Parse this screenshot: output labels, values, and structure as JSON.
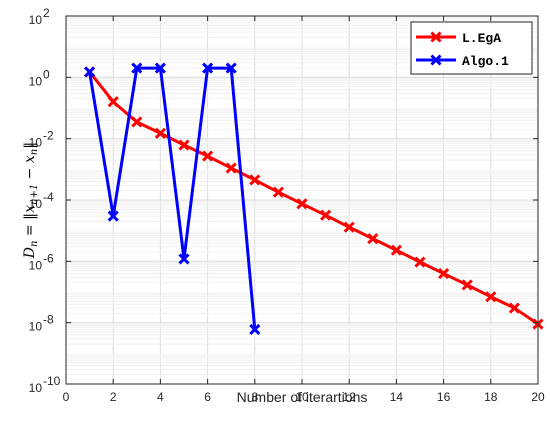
{
  "chart_data": {
    "type": "line",
    "xlabel": "Number of iterartions",
    "ylabel": "D_n = ||x_{n+1} − x_n||",
    "ylabel_parts": {
      "lhs": "D",
      "lhs_sub": "n",
      "eq": " = ‖",
      "x1": "x",
      "x1_sub": "n+1",
      "minus": " − ",
      "x2": "x",
      "x2_sub": "n",
      "close": "‖"
    },
    "xlim": [
      0,
      20
    ],
    "ylim": [
      1e-10,
      100
    ],
    "yscale": "log",
    "x_ticks": [
      0,
      2,
      4,
      6,
      8,
      10,
      12,
      14,
      16,
      18,
      20
    ],
    "y_ticks": [
      {
        "base": "10",
        "exp": "-10",
        "value": 1e-10
      },
      {
        "base": "10",
        "exp": "-8",
        "value": 1e-08
      },
      {
        "base": "10",
        "exp": "-6",
        "value": 1e-06
      },
      {
        "base": "10",
        "exp": "-4",
        "value": 0.0001
      },
      {
        "base": "10",
        "exp": "-2",
        "value": 0.01
      },
      {
        "base": "10",
        "exp": "0",
        "value": 1
      },
      {
        "base": "10",
        "exp": "2",
        "value": 100
      }
    ],
    "grid": true,
    "legend_position": "top-right",
    "series": [
      {
        "name": "L.EgA",
        "color": "#ff0000",
        "marker": "x",
        "x": [
          1,
          2,
          3,
          4,
          5,
          6,
          7,
          8,
          9,
          10,
          11,
          12,
          13,
          14,
          15,
          16,
          17,
          18,
          19,
          20
        ],
        "y": [
          1.5,
          0.16,
          0.035,
          0.015,
          0.0062,
          0.0027,
          0.0011,
          0.00045,
          0.00018,
          7.5e-05,
          3.2e-05,
          1.3e-05,
          5.5e-06,
          2.3e-06,
          9.5e-07,
          4e-07,
          1.7e-07,
          7e-08,
          3e-08,
          9e-09
        ]
      },
      {
        "name": "Algo.1",
        "color": "#0000ff",
        "marker": "x",
        "x": [
          1,
          2,
          3,
          4,
          5,
          6,
          7,
          8
        ],
        "y": [
          1.5,
          3e-05,
          2,
          2,
          1.2e-06,
          2,
          2,
          6e-09
        ]
      }
    ]
  }
}
